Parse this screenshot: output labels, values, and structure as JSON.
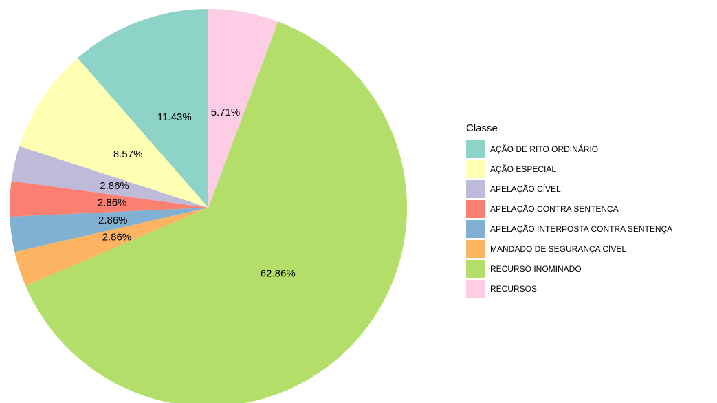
{
  "chart_data": {
    "type": "pie",
    "legend_title": "Classe",
    "categories": [
      "AÇÃO DE RITO ORDINÁRIO",
      "AÇÃO ESPECIAL",
      "APELAÇÃO CÍVEL",
      "APELAÇÃO CONTRA SENTENÇA",
      "APELAÇÃO INTERPOSTA CONTRA SENTENÇA",
      "MANDADO DE SEGURANÇA CÍVEL",
      "RECURSO INOMINADO",
      "RECURSOS"
    ],
    "values": [
      11.43,
      8.57,
      2.86,
      2.86,
      2.86,
      2.86,
      62.86,
      5.71
    ],
    "value_labels": [
      "11.43%",
      "8.57%",
      "2.86%",
      "2.86%",
      "2.86%",
      "2.86%",
      "62.86%",
      "5.71%"
    ],
    "colors": [
      "#8DD3C7",
      "#FFFFB3",
      "#BEBADA",
      "#FB8072",
      "#80B1D3",
      "#FDB462",
      "#B3DE69",
      "#FCCDE5"
    ],
    "legend": "right"
  }
}
